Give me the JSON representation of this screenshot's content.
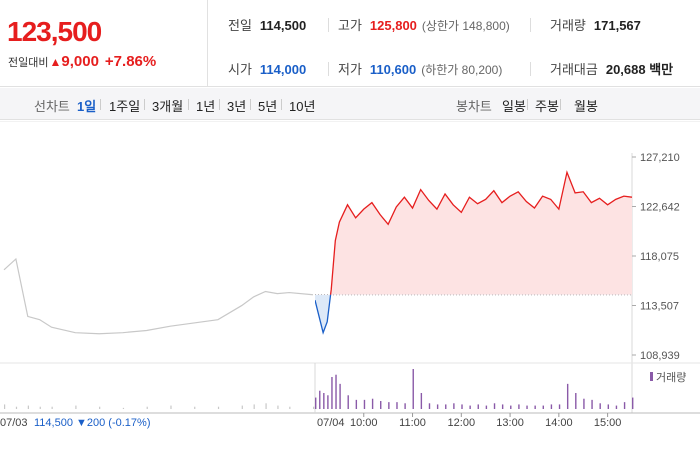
{
  "quote": {
    "price": "123,500",
    "change_label": "전일대비",
    "change_arrow": "▲",
    "change_amount": "9,000",
    "change_percent": "+7.86%"
  },
  "stats": {
    "prev_label": "전일",
    "prev_value": "114,500",
    "high_label": "고가",
    "high_value": "125,800",
    "upper_limit": "(상한가 148,800)",
    "volume_label": "거래량",
    "volume_value": "171,567",
    "open_label": "시가",
    "open_value": "114,000",
    "low_label": "저가",
    "low_value": "110,600",
    "lower_limit": "(하한가 80,200)",
    "amount_label": "거래대금",
    "amount_value": "20,688 백만"
  },
  "toolbar": {
    "line_label": "선차트",
    "line_periods": [
      "1일",
      "1주일",
      "3개월",
      "1년",
      "3년",
      "5년",
      "10년"
    ],
    "active_period": "1일",
    "candle_label": "봉차트",
    "candle_periods": [
      "일봉",
      "주봉",
      "월봉"
    ]
  },
  "footer": {
    "prev_date": "07/03",
    "prev_close": "114,500",
    "prev_arrow": "▼",
    "prev_change": "200 (-0.17%)",
    "today_date": "07/04"
  },
  "colors": {
    "up": "#e61e1e",
    "down": "#1a5fc8",
    "prev_day_line": "#c8c8c8",
    "volume": "#8a5aa8"
  },
  "chart_data": {
    "type": "line",
    "y_ticks": [
      "127,210",
      "122,642",
      "118,075",
      "113,507",
      "108,939"
    ],
    "ylim": [
      108939,
      127210
    ],
    "reference_price": 114500,
    "x_ticks": [
      "10:00",
      "11:00",
      "12:00",
      "13:00",
      "14:00",
      "15:00"
    ],
    "previous_day": {
      "date": "07/03",
      "x": [
        "09:00",
        "09:15",
        "09:30",
        "09:45",
        "10:00",
        "10:30",
        "11:00",
        "11:30",
        "12:00",
        "12:30",
        "13:00",
        "13:30",
        "14:00",
        "14:15",
        "14:30",
        "14:45",
        "15:00",
        "15:30"
      ],
      "values": [
        116800,
        117800,
        112500,
        112200,
        111500,
        111000,
        110900,
        111000,
        111200,
        111600,
        111900,
        112200,
        113500,
        114300,
        114800,
        114600,
        114700,
        114500
      ]
    },
    "today": {
      "date": "07/04",
      "x": [
        "09:00",
        "09:05",
        "09:10",
        "09:15",
        "09:20",
        "09:25",
        "09:30",
        "09:40",
        "09:50",
        "10:00",
        "10:10",
        "10:20",
        "10:30",
        "10:40",
        "10:50",
        "11:00",
        "11:10",
        "11:20",
        "11:30",
        "11:40",
        "11:50",
        "12:00",
        "12:10",
        "12:20",
        "12:30",
        "12:40",
        "12:50",
        "13:00",
        "13:10",
        "13:20",
        "13:30",
        "13:40",
        "13:50",
        "14:00",
        "14:10",
        "14:20",
        "14:30",
        "14:40",
        "14:50",
        "15:00",
        "15:10",
        "15:20",
        "15:30"
      ],
      "values": [
        114000,
        112500,
        111000,
        112000,
        115000,
        119500,
        121200,
        122800,
        121600,
        122400,
        123000,
        121900,
        121000,
        122600,
        123500,
        122500,
        124200,
        123200,
        122400,
        123800,
        122800,
        122100,
        123500,
        122900,
        123300,
        124100,
        123000,
        123600,
        124000,
        123100,
        122500,
        123600,
        123300,
        122400,
        125800,
        123900,
        124000,
        123000,
        123400,
        122800,
        123300,
        123600,
        123500
      ]
    },
    "volume_label": "거래량",
    "volume_series": {
      "name": "거래량",
      "previous_day": [
        4,
        2,
        3,
        2,
        2,
        3,
        2,
        1,
        2,
        3,
        2,
        2,
        3,
        4,
        5,
        3,
        2,
        2
      ],
      "today": [
        10,
        16,
        14,
        12,
        28,
        30,
        22,
        12,
        8,
        8,
        9,
        7,
        6,
        6,
        5,
        35,
        14,
        5,
        4,
        4,
        5,
        4,
        3,
        4,
        3,
        5,
        4,
        3,
        4,
        3,
        3,
        3,
        4,
        4,
        22,
        14,
        9,
        8,
        5,
        4,
        3,
        6,
        10
      ]
    }
  }
}
